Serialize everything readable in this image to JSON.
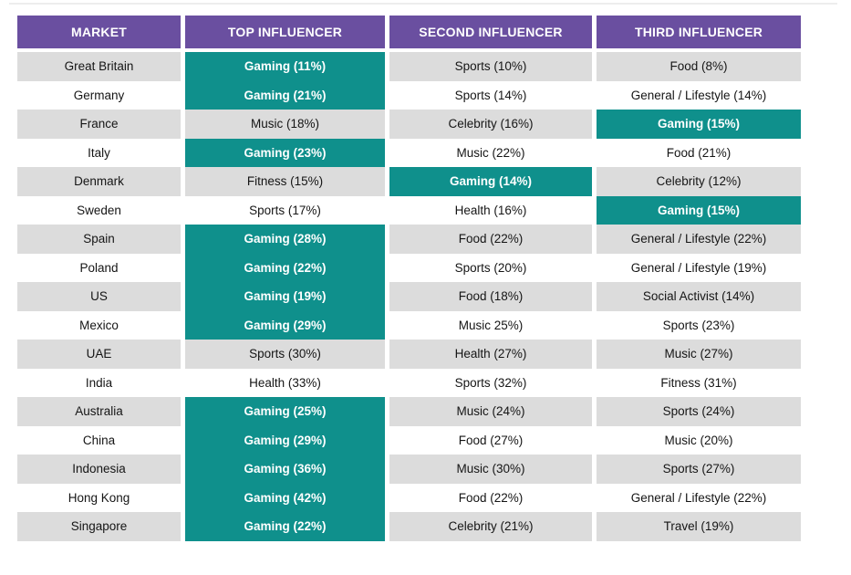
{
  "chart_data": {
    "type": "table",
    "columns": [
      "MARKET",
      "TOP INFLUENCER",
      "SECOND INFLUENCER",
      "THIRD INFLUENCER"
    ],
    "rows": [
      {
        "market": "Great Britain",
        "cells": [
          {
            "text": "Gaming (11%)",
            "highlight": true
          },
          {
            "text": "Sports (10%)",
            "highlight": false
          },
          {
            "text": "Food (8%)",
            "highlight": false
          }
        ]
      },
      {
        "market": "Germany",
        "cells": [
          {
            "text": "Gaming (21%)",
            "highlight": true
          },
          {
            "text": "Sports (14%)",
            "highlight": false
          },
          {
            "text": "General / Lifestyle (14%)",
            "highlight": false
          }
        ]
      },
      {
        "market": "France",
        "cells": [
          {
            "text": "Music (18%)",
            "highlight": false
          },
          {
            "text": "Celebrity (16%)",
            "highlight": false
          },
          {
            "text": "Gaming (15%)",
            "highlight": true
          }
        ]
      },
      {
        "market": "Italy",
        "cells": [
          {
            "text": "Gaming (23%)",
            "highlight": true
          },
          {
            "text": "Music (22%)",
            "highlight": false
          },
          {
            "text": "Food (21%)",
            "highlight": false
          }
        ]
      },
      {
        "market": "Denmark",
        "cells": [
          {
            "text": "Fitness (15%)",
            "highlight": false
          },
          {
            "text": "Gaming (14%)",
            "highlight": true
          },
          {
            "text": "Celebrity (12%)",
            "highlight": false
          }
        ]
      },
      {
        "market": "Sweden",
        "cells": [
          {
            "text": "Sports (17%)",
            "highlight": false
          },
          {
            "text": "Health (16%)",
            "highlight": false
          },
          {
            "text": "Gaming (15%)",
            "highlight": true
          }
        ]
      },
      {
        "market": "Spain",
        "cells": [
          {
            "text": "Gaming (28%)",
            "highlight": true
          },
          {
            "text": "Food (22%)",
            "highlight": false
          },
          {
            "text": "General / Lifestyle (22%)",
            "highlight": false
          }
        ]
      },
      {
        "market": "Poland",
        "cells": [
          {
            "text": "Gaming (22%)",
            "highlight": true
          },
          {
            "text": "Sports (20%)",
            "highlight": false
          },
          {
            "text": "General / Lifestyle (19%)",
            "highlight": false
          }
        ]
      },
      {
        "market": "US",
        "cells": [
          {
            "text": "Gaming (19%)",
            "highlight": true
          },
          {
            "text": "Food (18%)",
            "highlight": false
          },
          {
            "text": "Social Activist (14%)",
            "highlight": false
          }
        ]
      },
      {
        "market": "Mexico",
        "cells": [
          {
            "text": "Gaming (29%)",
            "highlight": true
          },
          {
            "text": "Music 25%)",
            "highlight": false
          },
          {
            "text": "Sports (23%)",
            "highlight": false
          }
        ]
      },
      {
        "market": "UAE",
        "cells": [
          {
            "text": "Sports (30%)",
            "highlight": false
          },
          {
            "text": "Health (27%)",
            "highlight": false
          },
          {
            "text": "Music (27%)",
            "highlight": false
          }
        ]
      },
      {
        "market": "India",
        "cells": [
          {
            "text": "Health (33%)",
            "highlight": false
          },
          {
            "text": "Sports (32%)",
            "highlight": false
          },
          {
            "text": "Fitness (31%)",
            "highlight": false
          }
        ]
      },
      {
        "market": "Australia",
        "cells": [
          {
            "text": "Gaming (25%)",
            "highlight": true
          },
          {
            "text": "Music (24%)",
            "highlight": false
          },
          {
            "text": "Sports (24%)",
            "highlight": false
          }
        ]
      },
      {
        "market": "China",
        "cells": [
          {
            "text": "Gaming (29%)",
            "highlight": true
          },
          {
            "text": "Food (27%)",
            "highlight": false
          },
          {
            "text": "Music (20%)",
            "highlight": false
          }
        ]
      },
      {
        "market": "Indonesia",
        "cells": [
          {
            "text": "Gaming (36%)",
            "highlight": true
          },
          {
            "text": "Music (30%)",
            "highlight": false
          },
          {
            "text": "Sports (27%)",
            "highlight": false
          }
        ]
      },
      {
        "market": "Hong Kong",
        "cells": [
          {
            "text": "Gaming (42%)",
            "highlight": true
          },
          {
            "text": "Food (22%)",
            "highlight": false
          },
          {
            "text": "General / Lifestyle (22%)",
            "highlight": false
          }
        ]
      },
      {
        "market": "Singapore",
        "cells": [
          {
            "text": "Gaming (22%)",
            "highlight": true
          },
          {
            "text": "Celebrity (21%)",
            "highlight": false
          },
          {
            "text": "Travel (19%)",
            "highlight": false
          }
        ]
      }
    ],
    "layout": {
      "legend_position": "none",
      "grid": "off",
      "row_striping": "odd-rows-gray",
      "highlight_rule": "Gaming cells shown in teal with white bold text"
    },
    "colors": {
      "header_bg": "#6A4FA0",
      "header_text": "#FFFFFF",
      "highlight_bg": "#0F908C",
      "highlight_text": "#FFFFFF",
      "row_alt_bg": "#DCDCDC",
      "row_bg": "#FFFFFF",
      "body_text": "#151515"
    }
  }
}
